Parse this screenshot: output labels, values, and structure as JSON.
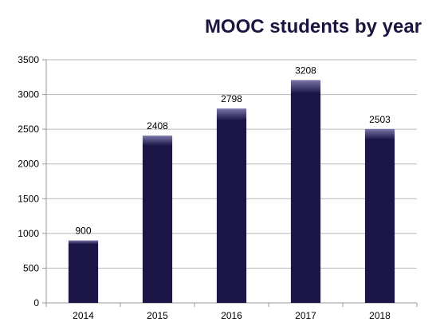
{
  "chart_data": {
    "type": "bar",
    "title": "MOOC students by year",
    "categories": [
      "2014",
      "2015",
      "2016",
      "2017",
      "2018"
    ],
    "values": [
      900,
      2408,
      2798,
      3208,
      2503
    ],
    "data_labels": [
      "900",
      "2408",
      "2798",
      "3208",
      "2503"
    ],
    "xlabel": "",
    "ylabel": "",
    "ylim": [
      0,
      3500
    ],
    "yticks": [
      0,
      500,
      1000,
      1500,
      2000,
      2500,
      3000,
      3500
    ],
    "grid": true,
    "legend": "none",
    "bar_color": "#1b1646",
    "bar_highlight_color": "#7a77a8",
    "grid_color": "#b8b8b8",
    "axis_color": "#9a9a9a"
  }
}
